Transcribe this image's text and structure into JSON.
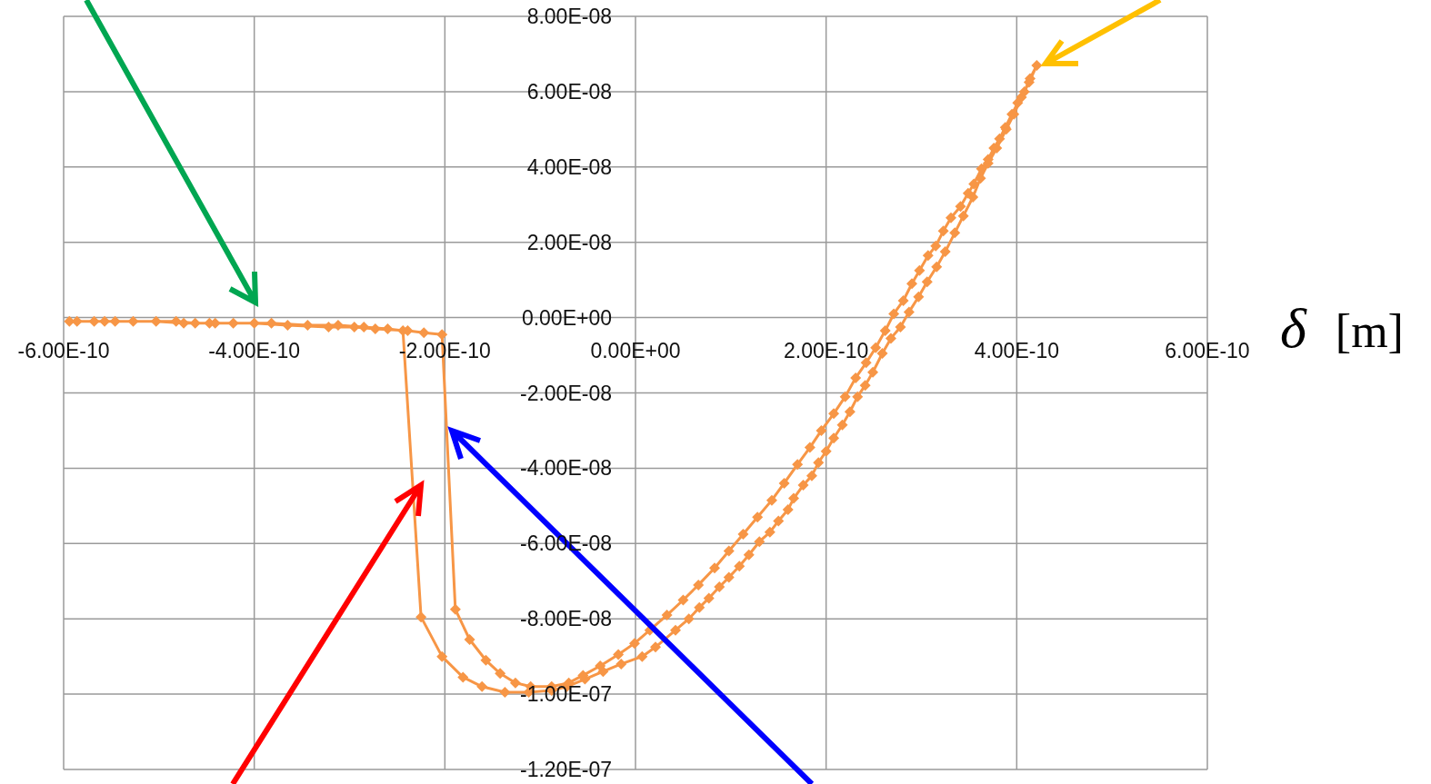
{
  "chart_data": {
    "type": "line",
    "xlabel": "δ [m]",
    "xlim": [
      -6e-10,
      6e-10
    ],
    "xticks": [
      {
        "value": -6e-10,
        "label": "-6.00E-10"
      },
      {
        "value": -4e-10,
        "label": "-4.00E-10"
      },
      {
        "value": -2e-10,
        "label": "-2.00E-10"
      },
      {
        "value": 0,
        "label": "0.00E+00"
      },
      {
        "value": 2e-10,
        "label": "2.00E-10"
      },
      {
        "value": 4e-10,
        "label": "4.00E-10"
      },
      {
        "value": 6e-10,
        "label": "6.00E-10"
      }
    ],
    "ylim": [
      -1.2e-07,
      8e-08
    ],
    "yticks": [
      {
        "value": -1.2e-07,
        "label": "-1.20E-07"
      },
      {
        "value": -1e-07,
        "label": "-1.00E-07"
      },
      {
        "value": -8e-08,
        "label": "-8.00E-08"
      },
      {
        "value": -6e-08,
        "label": "-6.00E-08"
      },
      {
        "value": -4e-08,
        "label": "-4.00E-08"
      },
      {
        "value": -2e-08,
        "label": "-2.00E-08"
      },
      {
        "value": 0,
        "label": "0.00E+00"
      },
      {
        "value": 2e-08,
        "label": "2.00E-08"
      },
      {
        "value": 4e-08,
        "label": "4.00E-08"
      },
      {
        "value": 6e-08,
        "label": "6.00E-08"
      },
      {
        "value": 8e-08,
        "label": "8.00E-08"
      }
    ],
    "grid": true,
    "marker": "diamond",
    "series": [
      {
        "color": "#f79646",
        "x": [
          -5.94e-10,
          -5.68e-10,
          -5.46e-10,
          -5.03e-10,
          -4.74e-10,
          -4.47e-10,
          -4.22e-10,
          -3.82e-10,
          -3.44e-10,
          -3.12e-10,
          -2.85e-10,
          -2.6e-10,
          -2.44e-10,
          -2.25e-10,
          -2.03e-10,
          -1.81e-10,
          -1.61e-10,
          -1.37e-10,
          -1.12e-10,
          -8.8e-11,
          -7.2e-11,
          -5.3e-11,
          -3.4e-11,
          -1.5e-11,
          7e-12,
          2.1e-11,
          4.2e-11,
          5.6e-11,
          6.7e-11,
          7.7e-11,
          8.8e-11,
          9.8e-11,
          1.09e-10,
          1.19e-10,
          1.3e-10,
          1.41e-10,
          1.5e-10,
          1.6e-10,
          1.66e-10,
          1.76e-10,
          1.85e-10,
          1.92e-10,
          2e-10,
          2.08e-10,
          2.17e-10,
          2.25e-10,
          2.33e-10,
          2.41e-10,
          2.49e-10,
          2.59e-10,
          2.68e-10,
          2.78e-10,
          2.87e-10,
          2.97e-10,
          3.06e-10,
          3.16e-10,
          3.25e-10,
          3.35e-10,
          3.44e-10,
          3.54e-10,
          3.62e-10,
          3.7e-10,
          3.79e-10,
          3.89e-10,
          3.97e-10,
          4.05e-10,
          4.13e-10,
          4.21e-10,
          4.14e-10,
          4.08e-10,
          4.01e-10,
          3.95e-10,
          3.88e-10,
          3.82e-10,
          3.76e-10,
          3.7e-10,
          3.63e-10,
          3.55e-10,
          3.49e-10,
          3.41e-10,
          3.31e-10,
          3.23e-10,
          3.15e-10,
          3.07e-10,
          2.98e-10,
          2.9e-10,
          2.81e-10,
          2.71e-10,
          2.62e-10,
          2.52e-10,
          2.42e-10,
          2.31e-10,
          2.2e-10,
          2.08e-10,
          1.95e-10,
          1.83e-10,
          1.7e-10,
          1.56e-10,
          1.43e-10,
          1.28e-10,
          1.13e-10,
          9.8e-11,
          8.3e-11,
          6.6e-11,
          5e-11,
          3.3e-11,
          1.5e-11,
          -1e-12,
          -1.8e-11,
          -3.7e-11,
          -5.5e-11,
          -7e-11,
          -8.8e-11,
          -1.1e-10,
          -1.26e-10,
          -1.42e-10,
          -1.57e-10,
          -1.74e-10,
          -1.89e-10,
          -2.03e-10,
          -2.22e-10,
          -2.39e-10,
          -2.73e-10,
          -2.95e-10,
          -3.22e-10,
          -3.65e-10,
          -4e-10,
          -4.41e-10,
          -4.62e-10,
          -4.82e-10,
          -5.27e-10,
          -5.57e-10,
          -5.86e-10
        ],
        "values": [
          -1e-09,
          -1e-09,
          -1e-09,
          -1e-09,
          -1.5e-09,
          -1.5e-09,
          -1.5e-09,
          -1.5e-09,
          -2e-09,
          -2e-09,
          -2.5e-09,
          -3e-09,
          -3.5e-09,
          -7.95e-08,
          -9e-08,
          -9.55e-08,
          -9.8e-08,
          -9.95e-08,
          -9.95e-08,
          -9.9e-08,
          -9.8e-08,
          -9.6e-08,
          -9.4e-08,
          -9.2e-08,
          -9e-08,
          -8.75e-08,
          -8.3e-08,
          -8e-08,
          -7.7e-08,
          -7.45e-08,
          -7.15e-08,
          -6.9e-08,
          -6.6e-08,
          -6.3e-08,
          -5.95e-08,
          -5.7e-08,
          -5.4e-08,
          -5.1e-08,
          -4.8e-08,
          -4.45e-08,
          -4.2e-08,
          -3.85e-08,
          -3.55e-08,
          -3.2e-08,
          -2.85e-08,
          -2.5e-08,
          -2.1e-08,
          -1.8e-08,
          -1.45e-08,
          -9.5e-09,
          -5.5e-09,
          -2.5e-09,
          1.5e-09,
          5.5e-09,
          9.5e-09,
          1.35e-08,
          1.75e-08,
          2.25e-08,
          2.7e-08,
          3.2e-08,
          3.7e-08,
          4.1e-08,
          4.5e-08,
          5e-08,
          5.4e-08,
          5.85e-08,
          6.25e-08,
          6.7e-08,
          6.35e-08,
          6e-08,
          5.7e-08,
          5.4e-08,
          5.05e-08,
          4.75e-08,
          4.5e-08,
          4.2e-08,
          3.95e-08,
          3.55e-08,
          3.3e-08,
          2.95e-08,
          2.65e-08,
          2.3e-08,
          1.9e-08,
          1.65e-08,
          1.25e-08,
          9e-09,
          4.5e-09,
          1e-09,
          -3.5e-09,
          -8e-09,
          -1.2e-08,
          -1.6e-08,
          -2.1e-08,
          -2.55e-08,
          -3e-08,
          -3.45e-08,
          -3.9e-08,
          -4.4e-08,
          -4.85e-08,
          -5.3e-08,
          -5.75e-08,
          -6.2e-08,
          -6.65e-08,
          -7.1e-08,
          -7.5e-08,
          -7.9e-08,
          -8.3e-08,
          -8.65e-08,
          -8.95e-08,
          -9.25e-08,
          -9.5e-08,
          -9.7e-08,
          -9.8e-08,
          -9.8e-08,
          -9.7e-08,
          -9.45e-08,
          -9.1e-08,
          -8.55e-08,
          -7.75e-08,
          -4.5e-09,
          -4e-09,
          -3.5e-09,
          -3e-09,
          -2.5e-09,
          -2.5e-09,
          -2e-09,
          -1.5e-09,
          -1.5e-09,
          -1.5e-09,
          -1e-09,
          -1e-09,
          -1e-09,
          -1e-09
        ]
      }
    ]
  }
}
